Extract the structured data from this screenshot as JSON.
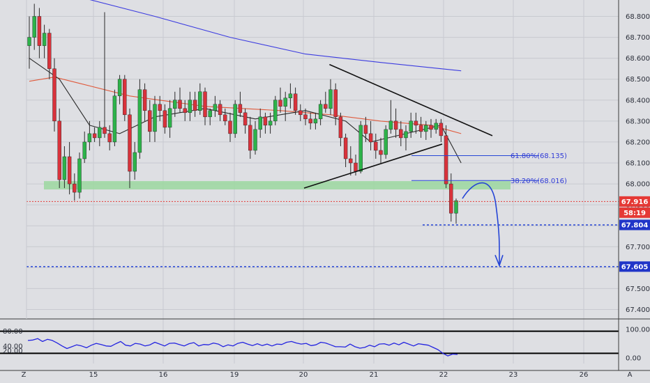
{
  "colors": {
    "background": "#dedfe3",
    "grid": "#c8cad0",
    "axis_line": "#3b3b3b",
    "bull": "#2db34a",
    "bear": "#d9323b",
    "wick": "#2a2a2a",
    "ma_long": "#3c3ce0",
    "ma_mid": "#e05a3c",
    "ma_short": "#2a2a2a",
    "support_zone": "#9cd8a0",
    "triangle": "#111111",
    "projection": "#2545d6",
    "level_line": "#2545d6",
    "price_tag_red": "#e53935",
    "price_tag_blue": "#2035c8",
    "rsi_line": "#2424e0",
    "rsi_bounds": "#000000"
  },
  "chart_data": [
    {
      "type": "candlestick",
      "instrument": "",
      "ylim": [
        67.35,
        68.85
      ],
      "y_ticks": [
        "68.800",
        "68.700",
        "68.600",
        "68.500",
        "68.400",
        "68.300",
        "68.200",
        "68.100",
        "68.000",
        "67.900",
        "67.800",
        "67.700",
        "67.600",
        "67.500",
        "67.400"
      ],
      "x_ticks": [
        "15",
        "16",
        "19",
        "20",
        "21",
        "22",
        "23",
        "26"
      ],
      "x_corner_labels": {
        "left": "Z",
        "right": "A"
      },
      "ohlc": [
        [
          68.66,
          68.8,
          68.55,
          68.7
        ],
        [
          68.7,
          68.86,
          68.64,
          68.8
        ],
        [
          68.8,
          68.84,
          68.6,
          68.66
        ],
        [
          68.66,
          68.76,
          68.6,
          68.72
        ],
        [
          68.72,
          68.74,
          68.5,
          68.55
        ],
        [
          68.55,
          68.6,
          68.25,
          68.3
        ],
        [
          68.3,
          68.36,
          67.98,
          68.02
        ],
        [
          68.02,
          68.18,
          67.98,
          68.13
        ],
        [
          68.13,
          68.2,
          67.95,
          68.0
        ],
        [
          68.0,
          68.05,
          67.92,
          67.96
        ],
        [
          67.96,
          68.15,
          67.93,
          68.12
        ],
        [
          68.12,
          68.25,
          68.1,
          68.2
        ],
        [
          68.2,
          68.3,
          68.16,
          68.24
        ],
        [
          68.24,
          68.27,
          68.2,
          68.22
        ],
        [
          68.22,
          68.3,
          68.18,
          68.27
        ],
        [
          68.27,
          68.82,
          68.22,
          68.24
        ],
        [
          68.24,
          68.28,
          68.16,
          68.2
        ],
        [
          68.2,
          68.45,
          68.18,
          68.42
        ],
        [
          68.42,
          68.52,
          68.38,
          68.5
        ],
        [
          68.5,
          68.52,
          68.3,
          68.33
        ],
        [
          68.33,
          68.36,
          67.98,
          68.06
        ],
        [
          68.06,
          68.2,
          68.02,
          68.15
        ],
        [
          68.15,
          68.5,
          68.12,
          68.45
        ],
        [
          68.45,
          68.48,
          68.3,
          68.35
        ],
        [
          68.35,
          68.4,
          68.2,
          68.25
        ],
        [
          68.25,
          68.42,
          68.2,
          68.38
        ],
        [
          68.38,
          68.42,
          68.3,
          68.35
        ],
        [
          68.35,
          68.38,
          68.24,
          68.27
        ],
        [
          68.27,
          68.4,
          68.22,
          68.36
        ],
        [
          68.36,
          68.44,
          68.32,
          68.4
        ],
        [
          68.4,
          68.46,
          68.34,
          68.36
        ],
        [
          68.36,
          68.4,
          68.3,
          68.34
        ],
        [
          68.34,
          68.44,
          68.3,
          68.4
        ],
        [
          68.4,
          68.44,
          68.32,
          68.35
        ],
        [
          68.35,
          68.48,
          68.33,
          68.44
        ],
        [
          68.44,
          68.46,
          68.28,
          68.32
        ],
        [
          68.32,
          68.36,
          68.28,
          68.35
        ],
        [
          68.35,
          68.42,
          68.32,
          68.38
        ],
        [
          68.38,
          68.4,
          68.3,
          68.33
        ],
        [
          68.33,
          68.36,
          68.28,
          68.3
        ],
        [
          68.3,
          68.34,
          68.2,
          68.24
        ],
        [
          68.24,
          68.4,
          68.22,
          68.38
        ],
        [
          68.38,
          68.44,
          68.32,
          68.34
        ],
        [
          68.34,
          68.36,
          68.24,
          68.28
        ],
        [
          68.28,
          68.32,
          68.12,
          68.16
        ],
        [
          68.16,
          68.3,
          68.14,
          68.26
        ],
        [
          68.26,
          68.36,
          68.22,
          68.32
        ],
        [
          68.32,
          68.34,
          68.24,
          68.28
        ],
        [
          68.28,
          68.34,
          68.24,
          68.3
        ],
        [
          68.3,
          68.42,
          68.28,
          68.4
        ],
        [
          68.4,
          68.46,
          68.34,
          68.37
        ],
        [
          68.37,
          68.44,
          68.3,
          68.41
        ],
        [
          68.41,
          68.48,
          68.36,
          68.43
        ],
        [
          68.43,
          68.46,
          68.33,
          68.35
        ],
        [
          68.35,
          68.38,
          68.3,
          68.33
        ],
        [
          68.33,
          68.36,
          68.28,
          68.31
        ],
        [
          68.31,
          68.34,
          68.26,
          68.29
        ],
        [
          68.29,
          68.34,
          68.26,
          68.31
        ],
        [
          68.31,
          68.4,
          68.28,
          68.38
        ],
        [
          68.38,
          68.44,
          68.34,
          68.36
        ],
        [
          68.36,
          68.5,
          68.33,
          68.45
        ],
        [
          68.45,
          68.48,
          68.28,
          68.32
        ],
        [
          68.32,
          68.34,
          68.18,
          68.22
        ],
        [
          68.22,
          68.24,
          68.08,
          68.12
        ],
        [
          68.12,
          68.18,
          68.04,
          68.1
        ],
        [
          68.1,
          68.14,
          68.04,
          68.06
        ],
        [
          68.06,
          68.3,
          68.05,
          68.28
        ],
        [
          68.28,
          68.32,
          68.2,
          68.24
        ],
        [
          68.24,
          68.3,
          68.16,
          68.2
        ],
        [
          68.2,
          68.24,
          68.12,
          68.16
        ],
        [
          68.16,
          68.22,
          68.1,
          68.14
        ],
        [
          68.14,
          68.28,
          68.12,
          68.26
        ],
        [
          68.26,
          68.4,
          68.24,
          68.3
        ],
        [
          68.3,
          68.36,
          68.22,
          68.26
        ],
        [
          68.26,
          68.3,
          68.18,
          68.22
        ],
        [
          68.22,
          68.28,
          68.16,
          68.25
        ],
        [
          68.25,
          68.34,
          68.22,
          68.3
        ],
        [
          68.3,
          68.34,
          68.24,
          68.28
        ],
        [
          68.28,
          68.32,
          68.22,
          68.25
        ],
        [
          68.25,
          68.3,
          68.21,
          68.28
        ],
        [
          68.28,
          68.31,
          68.22,
          68.26
        ],
        [
          68.26,
          68.31,
          68.24,
          68.29
        ],
        [
          68.29,
          68.31,
          68.2,
          68.23
        ],
        [
          68.23,
          68.28,
          67.98,
          68.0
        ],
        [
          68.0,
          68.05,
          67.82,
          67.86
        ],
        [
          67.86,
          67.93,
          67.81,
          67.92
        ]
      ],
      "moving_averages": [
        {
          "name": "",
          "color_key": "ma_long",
          "points": [
            [
              0,
              68.91
            ],
            [
              12,
              68.88
            ],
            [
              25,
              68.8
            ],
            [
              40,
              68.7
            ],
            [
              55,
              68.62
            ],
            [
              70,
              68.58
            ],
            [
              82,
              68.55
            ],
            [
              86,
              68.54
            ]
          ]
        },
        {
          "name": "",
          "color_key": "ma_mid",
          "points": [
            [
              0,
              68.49
            ],
            [
              5,
              68.51
            ],
            [
              10,
              68.48
            ],
            [
              20,
              68.42
            ],
            [
              35,
              68.37
            ],
            [
              50,
              68.35
            ],
            [
              60,
              68.33
            ],
            [
              70,
              68.3
            ],
            [
              80,
              68.28
            ],
            [
              86,
              68.24
            ]
          ]
        },
        {
          "name": "",
          "color_key": "ma_short",
          "points": [
            [
              0,
              68.6
            ],
            [
              6,
              68.5
            ],
            [
              12,
              68.28
            ],
            [
              18,
              68.24
            ],
            [
              25,
              68.32
            ],
            [
              35,
              68.36
            ],
            [
              45,
              68.31
            ],
            [
              55,
              68.35
            ],
            [
              63,
              68.3
            ],
            [
              68,
              68.2
            ],
            [
              75,
              68.24
            ],
            [
              82,
              68.28
            ],
            [
              86,
              68.1
            ]
          ]
        }
      ],
      "support_zone": {
        "y_top": 68.0,
        "y_bottom": 67.97,
        "x_from": 0,
        "x_to": 92
      },
      "triangle": {
        "upper": {
          "from": [
            57,
            68.57
          ],
          "to": [
            93,
            68.23
          ]
        },
        "lower": {
          "from": [
            57,
            67.98
          ],
          "to": [
            85,
            68.19
          ]
        }
      },
      "fib_levels": [
        {
          "label": "61.80%(68.135)",
          "value": 68.135,
          "x_from": 77,
          "x_to": 92
        },
        {
          "label": "38.20%(68.016)",
          "value": 68.016,
          "x_from": 77,
          "x_to": 92
        }
      ],
      "dashed_levels": [
        {
          "value": 67.804,
          "x_from": 80
        },
        {
          "value": 67.605,
          "x_from": 0
        }
      ],
      "projection_path": [
        [
          87,
          67.93
        ],
        [
          89,
          68.02
        ],
        [
          91,
          68.0
        ],
        [
          93,
          67.85
        ],
        [
          94,
          67.61
        ]
      ],
      "current_price_line": 67.916,
      "price_tags": [
        {
          "value": "67.916",
          "color_key": "price_tag_red"
        },
        {
          "value": "58:19",
          "color_key": "price_tag_red"
        },
        {
          "value": "67.804",
          "color_key": "price_tag_blue"
        },
        {
          "value": "67.605",
          "color_key": "price_tag_blue"
        }
      ]
    },
    {
      "type": "line",
      "ylim": [
        0,
        100
      ],
      "left_labels": [
        "80.00",
        "40.00",
        "20.00"
      ],
      "right_labels": [
        "100.00",
        "0.00"
      ],
      "bounds": [
        80,
        20
      ],
      "values": [
        55,
        56,
        60,
        52,
        58,
        55,
        48,
        40,
        33,
        38,
        43,
        40,
        35,
        42,
        47,
        44,
        40,
        39,
        46,
        52,
        42,
        40,
        47,
        45,
        40,
        43,
        50,
        45,
        40,
        47,
        48,
        44,
        40,
        46,
        49,
        40,
        44,
        43,
        48,
        45,
        38,
        43,
        40,
        47,
        50,
        45,
        41,
        46,
        41,
        45,
        40,
        45,
        44,
        50,
        52,
        48,
        45,
        47,
        41,
        43,
        50,
        48,
        43,
        38,
        38,
        37,
        45,
        38,
        34,
        36,
        42,
        38,
        45,
        46,
        42,
        48,
        43,
        50,
        45,
        40,
        46,
        44,
        42,
        36,
        30,
        20,
        13,
        18,
        17
      ]
    }
  ]
}
